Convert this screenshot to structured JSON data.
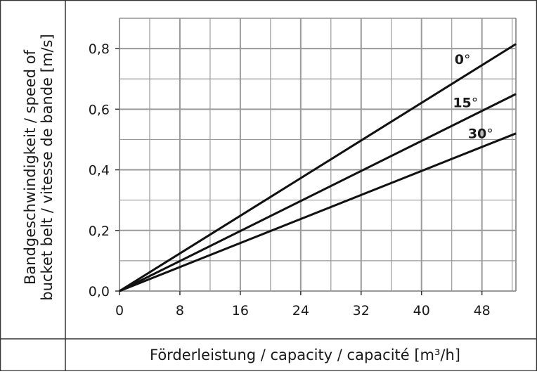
{
  "chart_data": {
    "type": "line",
    "xlabel": "Förderleistung / capacity / capacité [m³/h]",
    "ylabel_line1": "Bandgeschwindigkeit / speed of",
    "ylabel_line2": "bucket belt / vitesse de bande [m/s]",
    "xlim": [
      0,
      52.5
    ],
    "ylim": [
      0,
      0.9
    ],
    "x_ticks": [
      0,
      8,
      16,
      24,
      32,
      40,
      48
    ],
    "x_tick_labels": [
      "0",
      "8",
      "16",
      "24",
      "32",
      "40",
      "48"
    ],
    "y_ticks": [
      0,
      0.2,
      0.4,
      0.6,
      0.8
    ],
    "y_tick_labels": [
      "0,0",
      "0,2",
      "0,4",
      "0,6",
      "0,8"
    ],
    "grid": true,
    "grid_minor_x_step": 4,
    "grid_minor_y_step": 0.1,
    "series": [
      {
        "name": "0°",
        "label_bold": "0",
        "x": [
          0,
          52.5
        ],
        "y": [
          0,
          0.815
        ]
      },
      {
        "name": "15°",
        "label_bold": "15",
        "x": [
          0,
          52.5
        ],
        "y": [
          0,
          0.65
        ]
      },
      {
        "name": "30°",
        "label_bold": "30",
        "x": [
          0,
          52.5
        ],
        "y": [
          0,
          0.52
        ]
      }
    ],
    "degree_symbol": "°",
    "colors": {
      "line": "#111111",
      "grid": "#9a9a9a",
      "frame": "#333333"
    }
  }
}
